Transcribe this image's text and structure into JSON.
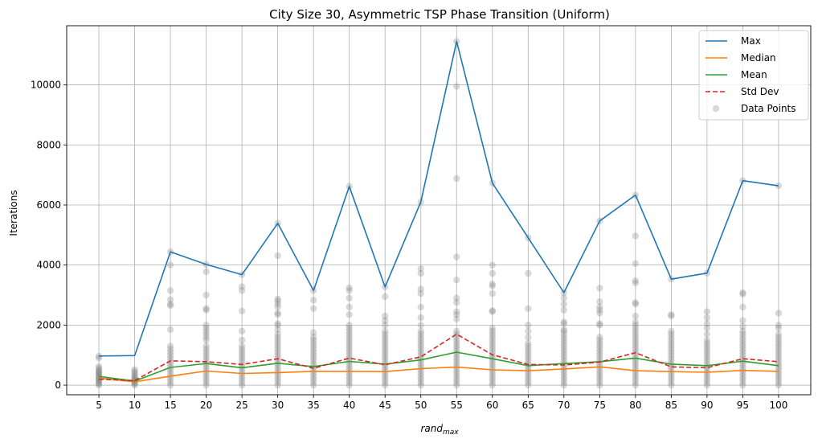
{
  "chart_data": {
    "type": "line",
    "title": "City Size 30, Asymmetric TSP Phase Transition (Uniform)",
    "xlabel_main": "rand",
    "xlabel_sub": "max",
    "ylabel": "Iterations",
    "x": [
      5,
      10,
      15,
      20,
      25,
      30,
      35,
      40,
      45,
      50,
      55,
      60,
      65,
      70,
      75,
      80,
      85,
      90,
      95,
      100
    ],
    "x_tick_labels": [
      "5",
      "10",
      "15",
      "20",
      "25",
      "30",
      "35",
      "40",
      "45",
      "50",
      "55",
      "60",
      "65",
      "70",
      "75",
      "80",
      "85",
      "90",
      "95",
      "100"
    ],
    "y_ticks": [
      0,
      2000,
      4000,
      6000,
      8000,
      10000
    ],
    "y_tick_labels": [
      "0",
      "2000",
      "4000",
      "6000",
      "8000",
      "10000"
    ],
    "ylim": [
      -320,
      11970
    ],
    "xlim": [
      0.5,
      104.5
    ],
    "grid": true,
    "legend_position": "top-right",
    "series": [
      {
        "name": "Max",
        "style": "solid",
        "color": "#1f77b4",
        "values": [
          970,
          985,
          4440,
          4020,
          3680,
          5390,
          3150,
          6620,
          3270,
          6100,
          11450,
          6730,
          4910,
          3080,
          5470,
          6330,
          3530,
          3730,
          6810,
          6640
        ]
      },
      {
        "name": "Median",
        "style": "solid",
        "color": "#ff7f0e",
        "values": [
          235,
          110,
          300,
          470,
          390,
          420,
          460,
          460,
          450,
          550,
          600,
          510,
          480,
          540,
          610,
          480,
          450,
          430,
          490,
          460
        ]
      },
      {
        "name": "Mean",
        "style": "solid",
        "color": "#2ca02c",
        "values": [
          290,
          135,
          590,
          720,
          580,
          730,
          620,
          790,
          700,
          840,
          1100,
          880,
          650,
          720,
          780,
          900,
          700,
          650,
          800,
          650
        ]
      },
      {
        "name": "Std Dev",
        "style": "dashed",
        "color": "#d62728",
        "values": [
          200,
          150,
          810,
          780,
          690,
          880,
          560,
          900,
          680,
          940,
          1700,
          1010,
          690,
          670,
          770,
          1080,
          610,
          580,
          880,
          780
        ]
      }
    ],
    "scatter": {
      "name": "Data Points",
      "color": "#808080",
      "columns": [
        {
          "x": 5,
          "y": [
            0,
            40,
            80,
            130,
            170,
            210,
            260,
            300,
            340,
            380,
            420,
            460,
            500,
            560,
            620,
            900,
            970
          ]
        },
        {
          "x": 10,
          "y": [
            0,
            40,
            80,
            120,
            160,
            200,
            240,
            290,
            340,
            400,
            460,
            520
          ]
        },
        {
          "x": 15,
          "y": [
            0,
            100,
            200,
            300,
            400,
            500,
            600,
            700,
            800,
            900,
            1000,
            1100,
            1200,
            1300,
            1850,
            2650,
            2700,
            2850,
            3150,
            4000,
            4440
          ]
        },
        {
          "x": 20,
          "y": [
            0,
            100,
            200,
            300,
            400,
            500,
            600,
            700,
            800,
            900,
            1000,
            1100,
            1200,
            1300,
            1500,
            1600,
            1700,
            1800,
            1900,
            2000,
            2500,
            2550,
            3000,
            3780,
            4020
          ]
        },
        {
          "x": 25,
          "y": [
            0,
            100,
            200,
            300,
            400,
            500,
            600,
            700,
            800,
            900,
            1000,
            1100,
            1200,
            1300,
            1500,
            1800,
            2470,
            3150,
            3280,
            3680
          ]
        },
        {
          "x": 30,
          "y": [
            0,
            100,
            200,
            300,
            400,
            500,
            600,
            700,
            800,
            900,
            1000,
            1100,
            1200,
            1300,
            1400,
            1500,
            1600,
            1700,
            1850,
            2000,
            2050,
            2350,
            2400,
            2600,
            2700,
            2800,
            2870,
            4310,
            5390
          ]
        },
        {
          "x": 35,
          "y": [
            0,
            100,
            200,
            300,
            400,
            500,
            600,
            700,
            800,
            900,
            1000,
            1100,
            1200,
            1300,
            1400,
            1500,
            1600,
            1750,
            2550,
            2830,
            3150
          ]
        },
        {
          "x": 40,
          "y": [
            0,
            100,
            200,
            300,
            400,
            500,
            600,
            700,
            800,
            900,
            1000,
            1100,
            1200,
            1300,
            1400,
            1500,
            1600,
            1700,
            1800,
            1900,
            2000,
            2350,
            2600,
            2900,
            3150,
            3240,
            6620
          ]
        },
        {
          "x": 45,
          "y": [
            0,
            100,
            200,
            300,
            400,
            500,
            600,
            700,
            800,
            900,
            1000,
            1100,
            1200,
            1300,
            1400,
            1500,
            1600,
            1700,
            1800,
            2000,
            2150,
            2300,
            2950,
            3270
          ]
        },
        {
          "x": 50,
          "y": [
            0,
            100,
            200,
            300,
            400,
            500,
            600,
            700,
            800,
            900,
            1000,
            1100,
            1200,
            1300,
            1400,
            1500,
            1600,
            1700,
            1800,
            2000,
            2250,
            2600,
            3050,
            3200,
            3720,
            3880,
            6100
          ]
        },
        {
          "x": 55,
          "y": [
            0,
            100,
            200,
            300,
            400,
            500,
            600,
            700,
            800,
            900,
            1000,
            1100,
            1200,
            1300,
            1400,
            1500,
            1600,
            1700,
            1800,
            2200,
            2350,
            2450,
            2750,
            2900,
            3500,
            4270,
            6880,
            9950,
            11450
          ]
        },
        {
          "x": 60,
          "y": [
            0,
            100,
            200,
            300,
            400,
            500,
            600,
            700,
            800,
            900,
            1000,
            1100,
            1200,
            1300,
            1400,
            1500,
            1600,
            1700,
            1800,
            1900,
            2450,
            2480,
            3050,
            3300,
            3370,
            3720,
            4000,
            6730
          ]
        },
        {
          "x": 65,
          "y": [
            0,
            100,
            200,
            300,
            400,
            500,
            600,
            700,
            800,
            900,
            1000,
            1100,
            1200,
            1300,
            1400,
            1600,
            1800,
            2000,
            2550,
            3720,
            4910
          ]
        },
        {
          "x": 70,
          "y": [
            0,
            100,
            200,
            300,
            400,
            500,
            600,
            700,
            800,
            900,
            1000,
            1100,
            1200,
            1300,
            1400,
            1500,
            1600,
            1700,
            1800,
            1850,
            2050,
            2100,
            2500,
            2700,
            2900,
            3080
          ]
        },
        {
          "x": 75,
          "y": [
            0,
            100,
            200,
            300,
            400,
            500,
            600,
            700,
            800,
            900,
            1000,
            1100,
            1200,
            1300,
            1400,
            1500,
            1600,
            2000,
            2050,
            2400,
            2500,
            2600,
            2780,
            3230,
            5470
          ]
        },
        {
          "x": 80,
          "y": [
            0,
            100,
            200,
            300,
            400,
            500,
            600,
            700,
            800,
            900,
            1000,
            1100,
            1200,
            1300,
            1400,
            1500,
            1600,
            1700,
            1800,
            1900,
            2000,
            2100,
            2300,
            2700,
            2750,
            3400,
            3480,
            4050,
            4970,
            6330
          ]
        },
        {
          "x": 85,
          "y": [
            0,
            100,
            200,
            300,
            400,
            500,
            600,
            700,
            800,
            900,
            1000,
            1100,
            1200,
            1300,
            1400,
            1500,
            1600,
            1700,
            1800,
            2300,
            2350,
            3530
          ]
        },
        {
          "x": 90,
          "y": [
            0,
            100,
            200,
            300,
            400,
            500,
            600,
            700,
            800,
            900,
            1000,
            1100,
            1200,
            1300,
            1400,
            1500,
            1700,
            1900,
            2050,
            2250,
            2450,
            3730
          ]
        },
        {
          "x": 95,
          "y": [
            0,
            100,
            200,
            300,
            400,
            500,
            600,
            700,
            800,
            900,
            1000,
            1100,
            1200,
            1300,
            1400,
            1500,
            1600,
            1700,
            1800,
            1950,
            2150,
            2600,
            3030,
            3080,
            6810
          ]
        },
        {
          "x": 100,
          "y": [
            0,
            100,
            200,
            300,
            400,
            500,
            600,
            700,
            800,
            900,
            1000,
            1100,
            1200,
            1300,
            1400,
            1500,
            1600,
            1700,
            1900,
            2000,
            2400,
            6640
          ]
        }
      ]
    }
  }
}
